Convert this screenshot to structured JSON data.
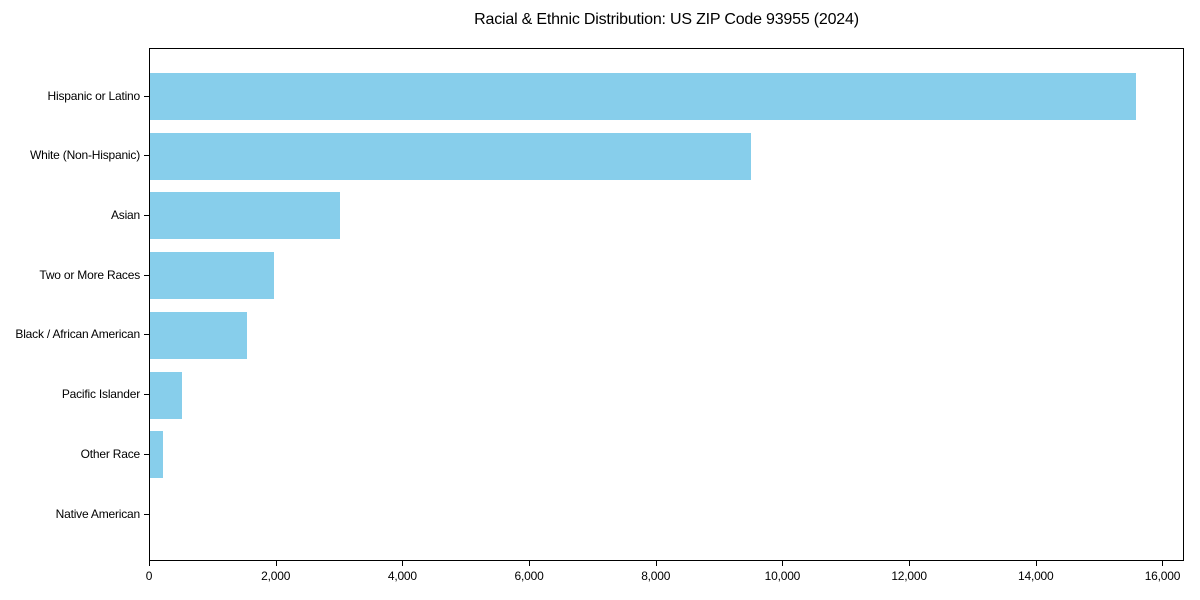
{
  "chart_data": {
    "type": "bar",
    "orientation": "horizontal",
    "title": "Racial & Ethnic Distribution: US ZIP Code 93955 (2024)",
    "categories": [
      "Hispanic or Latino",
      "White (Non-Hispanic)",
      "Asian",
      "Two or More Races",
      "Black / African American",
      "Pacific Islander",
      "Other Race",
      "Native American"
    ],
    "values": [
      15560,
      9490,
      3005,
      1965,
      1530,
      505,
      210,
      0
    ],
    "xlabel": "",
    "ylabel": "",
    "xlim": [
      0,
      16340
    ],
    "x_ticks": [
      0,
      2000,
      4000,
      6000,
      8000,
      10000,
      12000,
      14000,
      16000
    ],
    "x_tick_labels": [
      "0",
      "2,000",
      "4,000",
      "6,000",
      "8,000",
      "10,000",
      "12,000",
      "14,000",
      "16,000"
    ],
    "grid": false,
    "legend": false,
    "bar_color": "#87CEEB",
    "axis_color": "#000000",
    "text_color": "#000000",
    "background_color": "#FFFFFF"
  }
}
